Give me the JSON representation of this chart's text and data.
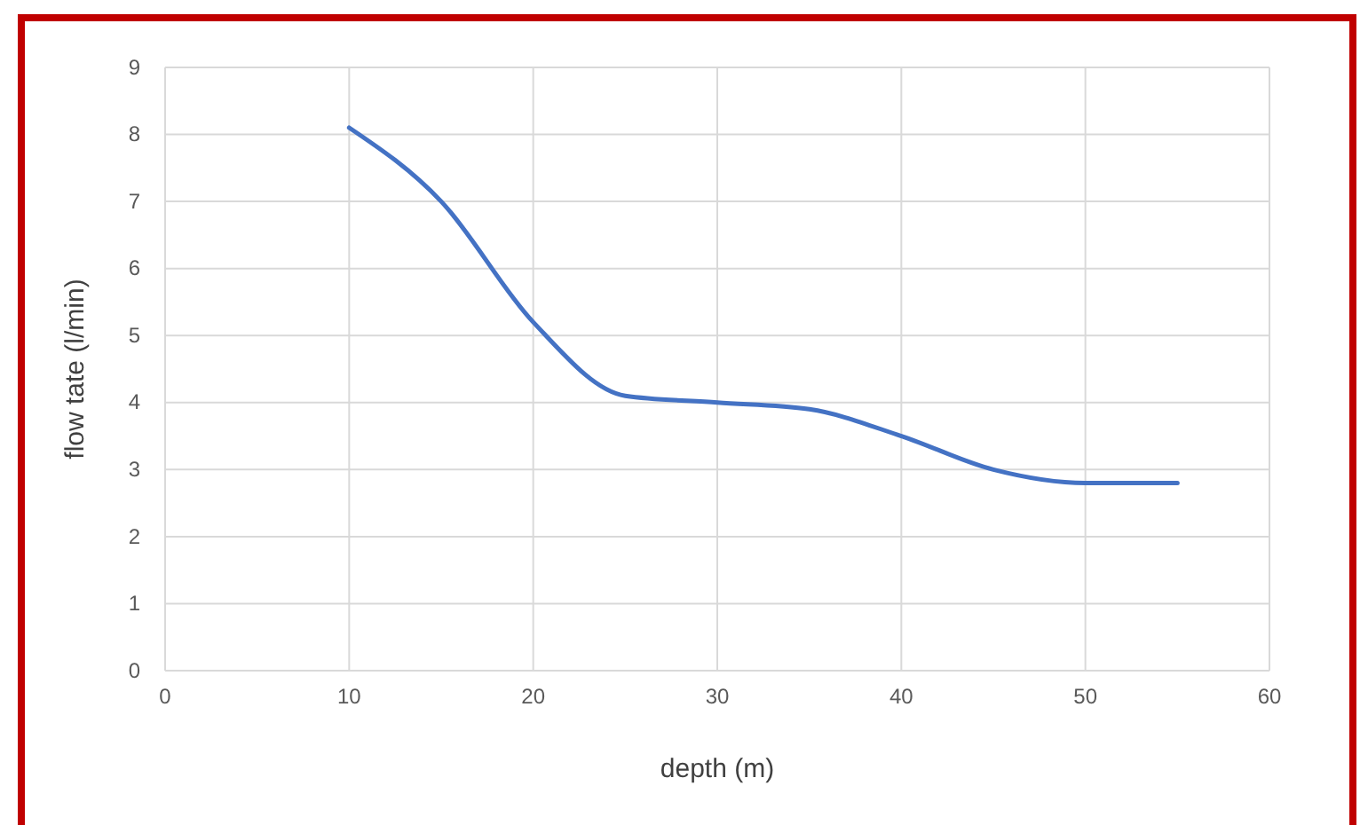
{
  "chart_data": {
    "type": "line",
    "xlabel": "depth (m)",
    "ylabel": "flow tate (l/min)",
    "x": [
      10,
      15,
      20,
      25,
      30,
      35,
      40,
      45,
      50,
      55
    ],
    "series": [
      {
        "color": "#4472c4",
        "values": [
          8.1,
          7.0,
          5.2,
          4.1,
          4.0,
          3.9,
          3.5,
          3.0,
          2.8,
          2.8
        ]
      }
    ],
    "xlim": [
      0,
      60
    ],
    "xticks": [
      0,
      10,
      20,
      30,
      40,
      50,
      60
    ],
    "ylim": [
      0,
      9
    ],
    "yticks": [
      0,
      1,
      2,
      3,
      4,
      5,
      6,
      7,
      8,
      9
    ],
    "grid": true,
    "marker": "none",
    "line_style": "solid"
  }
}
